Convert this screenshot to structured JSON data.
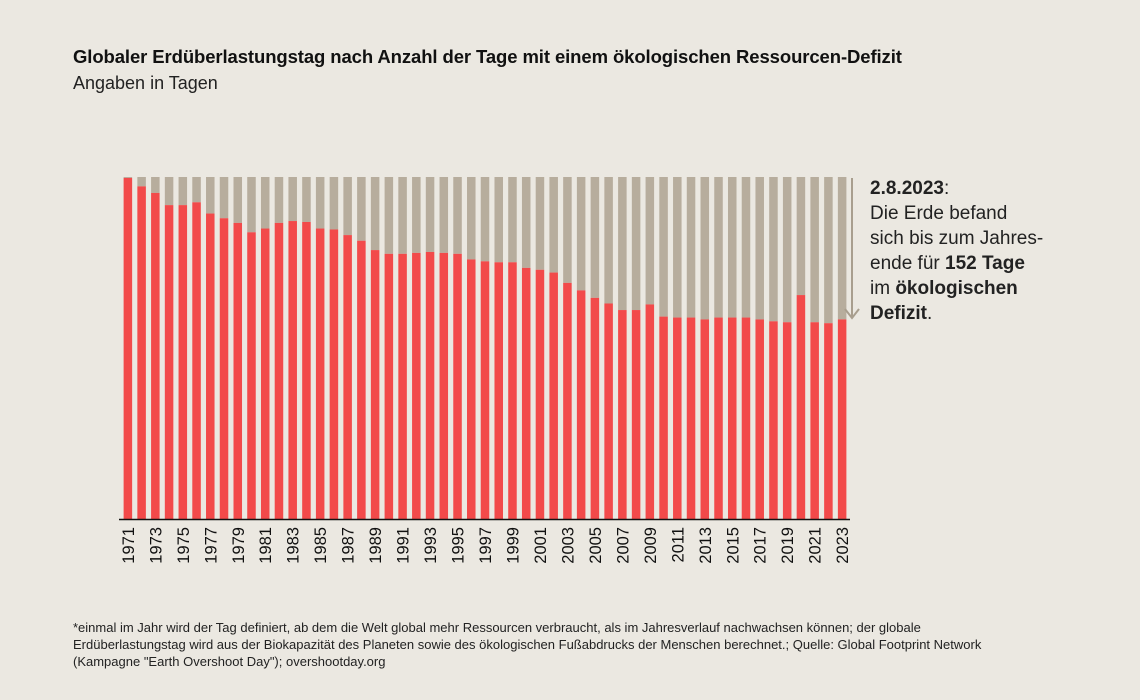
{
  "header": {
    "title": "Globaler Erdüberlastungstag nach Anzahl der Tage mit einem ökologischen Ressourcen-Defizit",
    "subtitle": "Angaben in Tagen"
  },
  "annotation": {
    "date": "2.8.2023",
    "colon": ":",
    "line1": "Die Erde befand",
    "line2": "sich bis zum Jahres-",
    "line3_pre": "ende für ",
    "line3_bold": "152 Tage",
    "line4_pre": "im ",
    "line4_bold": "ökologischen",
    "line5_bold": "Defizit",
    "line5_post": "."
  },
  "footnote": "*einmal im Jahr wird der Tag definiert, ab dem die Welt global mehr Ressourcen verbraucht, als im Jahresverlauf nachwachsen können; der globale Erdüberlastungstag wird aus der Biokapazität des Planeten sowie des ökologischen Fußabdrucks der Menschen berechnet.; Quelle: Global Footprint Network (Kampagne \"Earth Overshoot Day\"); overshootday.org",
  "colors": {
    "bar": "#f24a4a",
    "background_bar": "#b7ad9d",
    "arrow": "#a89e8e",
    "axis": "#111111"
  },
  "chart_data": {
    "type": "bar",
    "stacked": true,
    "ylim": [
      0,
      365
    ],
    "categories": [
      "1971",
      "1972",
      "1973",
      "1974",
      "1975",
      "1976",
      "1977",
      "1978",
      "1979",
      "1980",
      "1981",
      "1982",
      "1983",
      "1984",
      "1985",
      "1986",
      "1987",
      "1988",
      "1989",
      "1990",
      "1991",
      "1992",
      "1993",
      "1994",
      "1995",
      "1996",
      "1997",
      "1998",
      "1999",
      "2000",
      "2001",
      "2002",
      "2003",
      "2004",
      "2005",
      "2006",
      "2007",
      "2008",
      "2009",
      "2010",
      "2011",
      "2012",
      "2013",
      "2014",
      "2015",
      "2016",
      "2017",
      "2018",
      "2019",
      "2020",
      "2021",
      "2022",
      "2023"
    ],
    "x_tick_labels": [
      "1971",
      "1973",
      "1975",
      "1977",
      "1979",
      "1981",
      "1983",
      "1985",
      "1987",
      "1989",
      "1991",
      "1993",
      "1995",
      "1997",
      "1999",
      "2001",
      "2003",
      "2005",
      "2007",
      "2009",
      "2011",
      "2013",
      "2015",
      "2017",
      "2019",
      "2021",
      "2023"
    ],
    "series": [
      {
        "key": "overshoot_day",
        "values": [
          364,
          355,
          348,
          335,
          335,
          338,
          326,
          321,
          316,
          306,
          310,
          316,
          318,
          317,
          310,
          309,
          303,
          297,
          287,
          283,
          283,
          284,
          285,
          284,
          283,
          277,
          275,
          274,
          274,
          268,
          266,
          263,
          252,
          244,
          236,
          230,
          223,
          223,
          229,
          216,
          215,
          215,
          213,
          215,
          215,
          215,
          213,
          211,
          210,
          239,
          210,
          209,
          213
        ]
      },
      {
        "key": "deficit_days",
        "values": [
          1,
          10,
          17,
          30,
          30,
          27,
          39,
          44,
          49,
          59,
          55,
          49,
          47,
          48,
          55,
          56,
          62,
          68,
          78,
          82,
          82,
          81,
          80,
          81,
          82,
          88,
          90,
          91,
          91,
          97,
          99,
          102,
          113,
          121,
          129,
          135,
          142,
          142,
          136,
          149,
          150,
          150,
          152,
          150,
          150,
          150,
          152,
          154,
          155,
          126,
          155,
          156,
          152
        ]
      }
    ]
  }
}
